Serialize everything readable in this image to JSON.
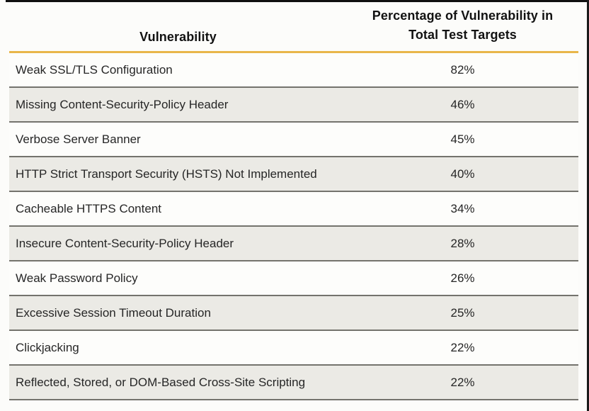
{
  "page": {
    "bg_color": "#FCFCFA",
    "top_edge_color": "#101010",
    "right_edge_color": "#1A1A1A",
    "accent_gold": "#E9B64A",
    "row_alt_bg": "#EBEAE5",
    "row_border_color": "#74736D",
    "header_text_color": "#121212",
    "body_text_color": "#262626"
  },
  "table": {
    "header": {
      "col1": "Vulnerability",
      "col2_line1": "Percentage of Vulnerability in",
      "col2_line2": "Total Test Targets"
    },
    "rows": [
      {
        "vulnerability": "Weak SSL/TLS Configuration",
        "percentage": "82%"
      },
      {
        "vulnerability": "Missing Content-Security-Policy Header",
        "percentage": "46%"
      },
      {
        "vulnerability": "Verbose Server Banner",
        "percentage": "45%"
      },
      {
        "vulnerability": "HTTP Strict Transport Security (HSTS) Not Implemented",
        "percentage": "40%"
      },
      {
        "vulnerability": "Cacheable HTTPS Content",
        "percentage": "34%"
      },
      {
        "vulnerability": "Insecure Content-Security-Policy Header",
        "percentage": "28%"
      },
      {
        "vulnerability": "Weak Password Policy",
        "percentage": "26%"
      },
      {
        "vulnerability": "Excessive Session Timeout Duration",
        "percentage": "25%"
      },
      {
        "vulnerability": "Clickjacking",
        "percentage": "22%"
      },
      {
        "vulnerability": "Reflected, Stored, or DOM-Based Cross-Site Scripting",
        "percentage": "22%"
      }
    ]
  },
  "chart_data": {
    "type": "table",
    "columns": [
      "Vulnerability",
      "Percentage of Vulnerability in Total Test Targets"
    ],
    "categories": [
      "Weak SSL/TLS Configuration",
      "Missing Content-Security-Policy Header",
      "Verbose Server Banner",
      "HTTP Strict Transport Security (HSTS) Not Implemented",
      "Cacheable HTTPS Content",
      "Insecure Content-Security-Policy Header",
      "Weak Password Policy",
      "Excessive Session Timeout Duration",
      "Clickjacking",
      "Reflected, Stored, or DOM-Based Cross-Site Scripting"
    ],
    "values": [
      82,
      46,
      45,
      40,
      34,
      28,
      26,
      25,
      22,
      22
    ],
    "unit": "%",
    "title": "",
    "layout_hints": {
      "alternating_row_shading": true,
      "header_rule_color": "#E9B64A",
      "value_column_alignment": "center"
    }
  }
}
